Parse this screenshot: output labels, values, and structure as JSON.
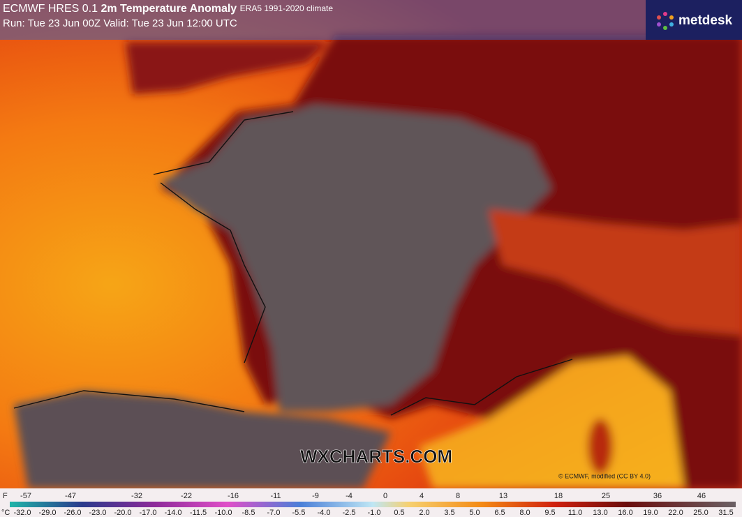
{
  "header": {
    "model": "ECMWF HRES 0.1",
    "title": "2m Temperature Anomaly",
    "climate": "ERA5 1991-2020 climate",
    "run": "Run: Tue 23 Jun 00Z Valid: Tue 23 Jun 12:00 UTC"
  },
  "logo": "metdesk",
  "watermark": "WXCHARTS.COM",
  "attribution": "© ECMWF, modified (CC BY 4.0)",
  "legend": {
    "f_unit": "F",
    "f_labels": [
      "-57",
      "-47",
      "-32",
      "-22",
      "-16",
      "-11",
      "-9",
      "-4",
      "0",
      "4",
      "8",
      "13",
      "18",
      "25",
      "36",
      "46"
    ],
    "c_unit": "°C",
    "c_labels": [
      "-32.0",
      "-29.0",
      "-26.0",
      "-23.0",
      "-20.0",
      "-17.0",
      "-14.0",
      "-11.5",
      "-10.0",
      "-8.5",
      "-7.0",
      "-5.5",
      "-4.0",
      "-2.5",
      "-1.0",
      "0.5",
      "2.0",
      "3.5",
      "5.0",
      "6.5",
      "8.0",
      "9.5",
      "11.0",
      "13.0",
      "16.0",
      "19.0",
      "22.0",
      "25.0",
      "31.5"
    ]
  }
}
